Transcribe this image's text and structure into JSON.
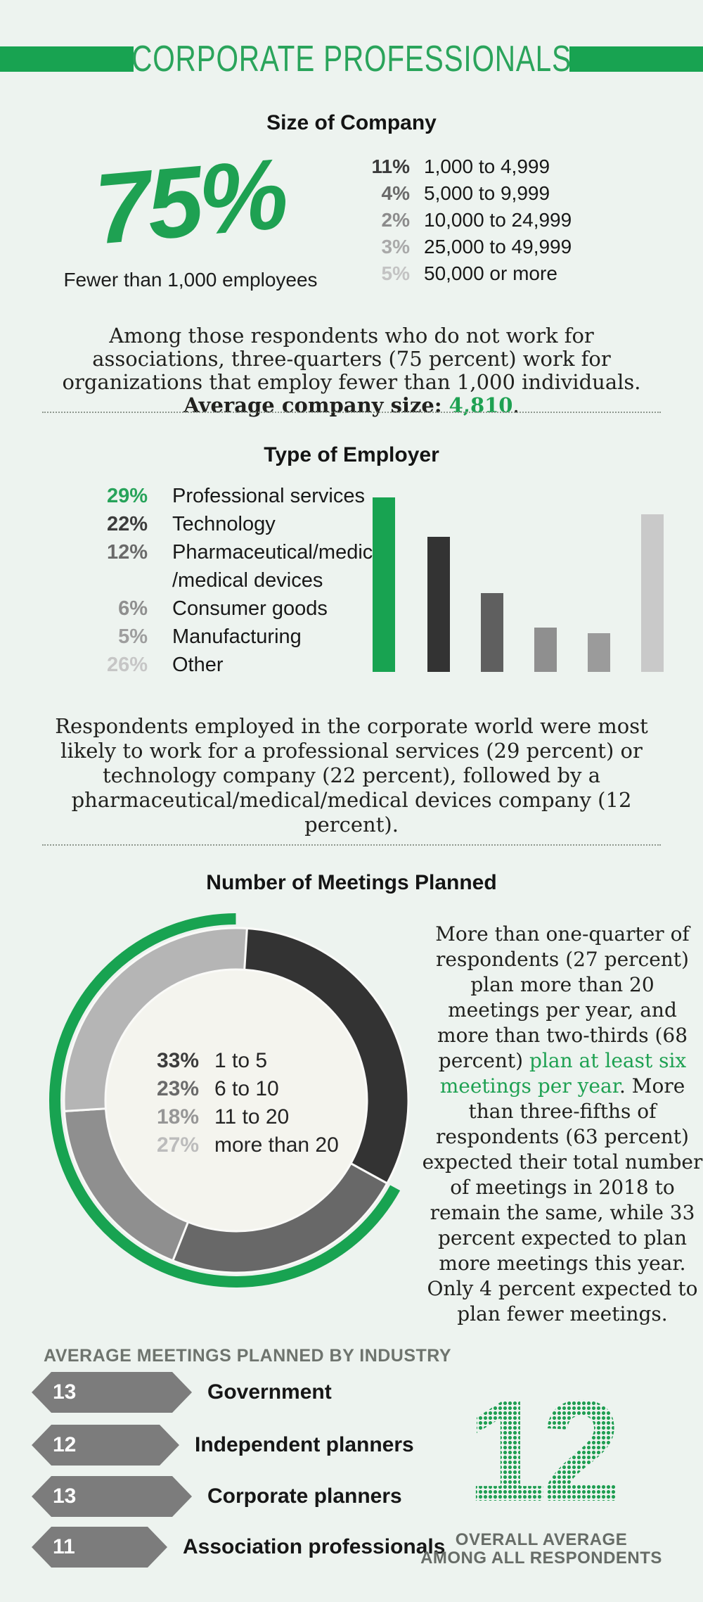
{
  "page": {
    "bg": "#edf3ef",
    "accent": "#18a351",
    "title": "CORPORATE PROFESSIONALS"
  },
  "size_of_company": {
    "heading": "Size of Company",
    "big_pct": "75%",
    "big_label": "Fewer than 1,000 employees",
    "rows": [
      {
        "pct": "11%",
        "label": "1,000 to 4,999",
        "color": "#3c3c3c"
      },
      {
        "pct": "4%",
        "label": "5,000 to 9,999",
        "color": "#6a6a6a"
      },
      {
        "pct": "2%",
        "label": "10,000 to 24,999",
        "color": "#8b8b8b"
      },
      {
        "pct": "3%",
        "label": "25,000 to 49,999",
        "color": "#a9a9a9"
      },
      {
        "pct": "5%",
        "label": "50,000 or more",
        "color": "#c3c3c3"
      }
    ],
    "note_pre": "Among those respondents who do not work for associations, three-quarters (75 percent) work for organizations that employ fewer than 1,000 individuals. ",
    "note_bold": "Average company size: ",
    "note_highlight": "4,810",
    "note_end": "."
  },
  "type_of_employer": {
    "heading": "Type of Employer",
    "rows": [
      {
        "pct": "29%",
        "label": "Professional services",
        "color": "#27a35a"
      },
      {
        "pct": "22%",
        "label": "Technology",
        "color": "#3c3c3c"
      },
      {
        "pct": "12%",
        "label": "Pharmaceutical/medical",
        "color": "#6a6a6a"
      },
      {
        "pct": "",
        "label": "/medical devices",
        "color": "#6a6a6a"
      },
      {
        "pct": "6%",
        "label": "Consumer goods",
        "color": "#8f8f8f"
      },
      {
        "pct": "5%",
        "label": "Manufacturing",
        "color": "#9e9e9e"
      },
      {
        "pct": "26%",
        "label": "Other",
        "color": "#c6c6c6"
      }
    ],
    "note": "Respondents employed in the corporate world were most likely to work for a professional services (29 percent) or technology company (22 percent), followed by a pharmaceutical/medical/medical devices company (12 percent)."
  },
  "meetings": {
    "heading": "Number of Meetings Planned",
    "legend": [
      {
        "pct": "33%",
        "label": "1 to 5",
        "color": "#3c3c3c"
      },
      {
        "pct": "23%",
        "label": "6 to 10",
        "color": "#6a6a6a"
      },
      {
        "pct": "18%",
        "label": "11 to 20",
        "color": "#969696"
      },
      {
        "pct": "27%",
        "label": "more than 20",
        "color": "#bcbcbc"
      }
    ],
    "segment_colors": [
      "#333333",
      "#686868",
      "#8f8f8f",
      "#b5b5b5"
    ],
    "note_pre": "More than one-quarter of respondents (27 percent) plan more than 20 meetings per year, and more than two-thirds (68 percent) ",
    "note_green": "plan at least six meetings per year",
    "note_post": ". More than three-fifths of respondents (63 percent) expected their total number of meetings in 2018 to remain the same, while 33 percent expected to plan more meetings this year. Only 4 percent expected to plan fewer meetings."
  },
  "industry": {
    "heading": "AVERAGE MEETINGS PLANNED BY INDUSTRY",
    "rows": [
      {
        "value": "13",
        "label": "Government"
      },
      {
        "value": "12",
        "label": "Independent planners"
      },
      {
        "value": "13",
        "label": "Corporate planners"
      },
      {
        "value": "11",
        "label": "Association professionals"
      }
    ],
    "overall_value": "12",
    "overall_caption_line1": "OVERALL AVERAGE",
    "overall_caption_line2": "AMONG ALL RESPONDENTS"
  },
  "chart_data": [
    {
      "type": "table",
      "title": "Size of Company",
      "categories": [
        "Fewer than 1,000 employees",
        "1,000 to 4,999",
        "5,000 to 9,999",
        "10,000 to 24,999",
        "25,000 to 49,999",
        "50,000 or more"
      ],
      "values": [
        75,
        11,
        4,
        2,
        3,
        5
      ],
      "annotation": "Average company size: 4,810"
    },
    {
      "type": "bar",
      "title": "Type of Employer",
      "categories": [
        "Professional services",
        "Technology",
        "Pharmaceutical/medical/medical devices",
        "Consumer goods",
        "Manufacturing",
        "Other"
      ],
      "values": [
        29,
        22,
        12,
        6,
        5,
        26
      ],
      "colors": [
        "#18a351",
        "#333333",
        "#5f5f5f",
        "#8f8f8f",
        "#9b9b9b",
        "#c9c9c9"
      ],
      "xlabel": "",
      "ylabel": "",
      "ylim": [
        0,
        29
      ],
      "grid": false,
      "legend_position": "left-list"
    },
    {
      "type": "pie",
      "subtype": "donut",
      "title": "Number of Meetings Planned",
      "categories": [
        "1 to 5",
        "6 to 10",
        "11 to 20",
        "more than 20"
      ],
      "values": [
        33,
        23,
        18,
        27
      ],
      "colors": [
        "#333333",
        "#686868",
        "#8f8f8f",
        "#b5b5b5"
      ],
      "outer_arc": {
        "value": 68,
        "color": "#18a351",
        "label": "plan at least six meetings per year"
      },
      "legend_position": "center"
    },
    {
      "type": "bar",
      "orientation": "horizontal",
      "title": "AVERAGE MEETINGS PLANNED BY INDUSTRY",
      "categories": [
        "Government",
        "Independent planners",
        "Corporate planners",
        "Association professionals"
      ],
      "values": [
        13,
        12,
        13,
        11
      ],
      "bar_color": "#7c7c7c",
      "annotation": "Overall average among all respondents: 12"
    }
  ]
}
